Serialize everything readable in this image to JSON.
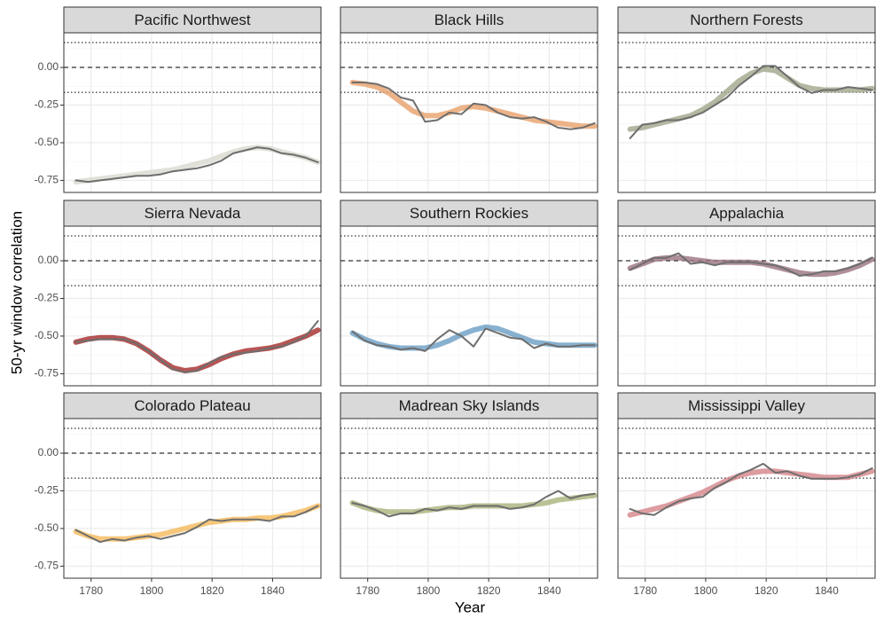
{
  "chart_data": {
    "type": "line",
    "xlabel": "Year",
    "ylabel": "50-yr window correlation",
    "xlim": [
      1771,
      1856
    ],
    "ylim": [
      -0.83,
      0.23
    ],
    "xticks": [
      1780,
      1800,
      1820,
      1840
    ],
    "yticks": [
      {
        "value": 0,
        "label": "0.00"
      },
      {
        "value": -0.25,
        "label": "-0.25"
      },
      {
        "value": -0.5,
        "label": "-0.50"
      },
      {
        "value": -0.75,
        "label": "-0.75"
      }
    ],
    "xminor": [
      1790,
      1810,
      1830,
      1850
    ],
    "yminor": [
      0.125,
      -0.125,
      -0.375,
      -0.625
    ],
    "grid": true,
    "hlines": [
      {
        "value": 0.165,
        "style": "dotted"
      },
      {
        "value": 0,
        "style": "dashed"
      },
      {
        "value": -0.165,
        "style": "dotted"
      }
    ],
    "x": [
      1775,
      1779,
      1783,
      1787,
      1791,
      1795,
      1799,
      1803,
      1807,
      1811,
      1815,
      1819,
      1823,
      1827,
      1831,
      1835,
      1839,
      1843,
      1847,
      1851,
      1855
    ],
    "panels": [
      {
        "title": "Pacific Northwest",
        "series": [
          {
            "color": "#d9d9d0",
            "values": [
              -0.76,
              -0.75,
              -0.74,
              -0.73,
              -0.72,
              -0.71,
              -0.7,
              -0.69,
              -0.68,
              -0.66,
              -0.64,
              -0.62,
              -0.59,
              -0.56,
              -0.54,
              -0.53,
              -0.54,
              -0.56,
              -0.58,
              -0.6,
              -0.63
            ]
          },
          {
            "color": "#6e6e6e",
            "values": [
              -0.75,
              -0.76,
              -0.75,
              -0.74,
              -0.73,
              -0.72,
              -0.72,
              -0.71,
              -0.69,
              -0.68,
              -0.67,
              -0.65,
              -0.62,
              -0.57,
              -0.55,
              -0.53,
              -0.54,
              -0.57,
              -0.58,
              -0.6,
              -0.63
            ]
          }
        ]
      },
      {
        "title": "Black Hills",
        "series": [
          {
            "color": "#e8a06a",
            "values": [
              -0.1,
              -0.11,
              -0.13,
              -0.17,
              -0.23,
              -0.29,
              -0.32,
              -0.32,
              -0.3,
              -0.27,
              -0.26,
              -0.27,
              -0.29,
              -0.31,
              -0.33,
              -0.35,
              -0.36,
              -0.37,
              -0.38,
              -0.39,
              -0.39
            ]
          },
          {
            "color": "#6e6e6e",
            "values": [
              -0.1,
              -0.1,
              -0.11,
              -0.14,
              -0.2,
              -0.22,
              -0.36,
              -0.35,
              -0.3,
              -0.31,
              -0.24,
              -0.25,
              -0.3,
              -0.33,
              -0.34,
              -0.33,
              -0.36,
              -0.4,
              -0.41,
              -0.4,
              -0.37
            ]
          }
        ]
      },
      {
        "title": "Northern Forests",
        "series": [
          {
            "color": "#9fa68a",
            "values": [
              -0.41,
              -0.4,
              -0.38,
              -0.36,
              -0.34,
              -0.32,
              -0.28,
              -0.23,
              -0.16,
              -0.09,
              -0.04,
              -0.01,
              -0.02,
              -0.07,
              -0.12,
              -0.14,
              -0.15,
              -0.15,
              -0.15,
              -0.15,
              -0.14
            ]
          },
          {
            "color": "#6e6e6e",
            "values": [
              -0.47,
              -0.38,
              -0.37,
              -0.35,
              -0.35,
              -0.33,
              -0.3,
              -0.25,
              -0.2,
              -0.12,
              -0.06,
              0.01,
              0.01,
              -0.06,
              -0.13,
              -0.17,
              -0.15,
              -0.15,
              -0.13,
              -0.14,
              -0.15
            ]
          }
        ]
      },
      {
        "title": "Sierra Nevada",
        "series": [
          {
            "color": "#a52a2a",
            "values": [
              -0.54,
              -0.52,
              -0.51,
              -0.51,
              -0.52,
              -0.55,
              -0.6,
              -0.66,
              -0.71,
              -0.73,
              -0.72,
              -0.69,
              -0.65,
              -0.62,
              -0.6,
              -0.59,
              -0.58,
              -0.56,
              -0.53,
              -0.5,
              -0.46
            ]
          },
          {
            "color": "#6e6e6e",
            "values": [
              -0.54,
              -0.53,
              -0.52,
              -0.52,
              -0.52,
              -0.55,
              -0.6,
              -0.66,
              -0.72,
              -0.74,
              -0.73,
              -0.68,
              -0.64,
              -0.62,
              -0.61,
              -0.6,
              -0.58,
              -0.57,
              -0.54,
              -0.5,
              -0.4
            ]
          }
        ]
      },
      {
        "title": "Southern Rockies",
        "series": [
          {
            "color": "#6a9ec4",
            "values": [
              -0.48,
              -0.52,
              -0.55,
              -0.57,
              -0.58,
              -0.58,
              -0.58,
              -0.56,
              -0.53,
              -0.49,
              -0.46,
              -0.44,
              -0.45,
              -0.48,
              -0.51,
              -0.54,
              -0.55,
              -0.56,
              -0.56,
              -0.56,
              -0.56
            ]
          },
          {
            "color": "#6e6e6e",
            "values": [
              -0.47,
              -0.53,
              -0.56,
              -0.57,
              -0.59,
              -0.58,
              -0.6,
              -0.52,
              -0.46,
              -0.5,
              -0.57,
              -0.45,
              -0.48,
              -0.51,
              -0.52,
              -0.58,
              -0.55,
              -0.57,
              -0.57,
              -0.56,
              -0.56
            ]
          }
        ]
      },
      {
        "title": "Appalachia",
        "series": [
          {
            "color": "#9b7382",
            "values": [
              -0.05,
              -0.02,
              0.01,
              0.02,
              0.02,
              0.01,
              0.0,
              -0.01,
              -0.01,
              -0.01,
              -0.01,
              -0.02,
              -0.04,
              -0.06,
              -0.08,
              -0.09,
              -0.09,
              -0.08,
              -0.06,
              -0.03,
              0.01
            ]
          },
          {
            "color": "#6e6e6e",
            "values": [
              -0.06,
              -0.02,
              0.02,
              0.02,
              0.05,
              -0.02,
              -0.01,
              -0.03,
              -0.01,
              -0.01,
              -0.01,
              -0.02,
              -0.03,
              -0.06,
              -0.1,
              -0.09,
              -0.07,
              -0.07,
              -0.05,
              -0.02,
              0.02
            ]
          }
        ]
      },
      {
        "title": "Colorado Plateau",
        "series": [
          {
            "color": "#f5b95a",
            "values": [
              -0.52,
              -0.55,
              -0.57,
              -0.57,
              -0.57,
              -0.56,
              -0.55,
              -0.54,
              -0.52,
              -0.5,
              -0.48,
              -0.46,
              -0.45,
              -0.44,
              -0.44,
              -0.43,
              -0.43,
              -0.42,
              -0.4,
              -0.38,
              -0.35
            ]
          },
          {
            "color": "#6e6e6e",
            "values": [
              -0.51,
              -0.55,
              -0.59,
              -0.57,
              -0.58,
              -0.56,
              -0.55,
              -0.57,
              -0.55,
              -0.53,
              -0.49,
              -0.44,
              -0.45,
              -0.44,
              -0.44,
              -0.44,
              -0.45,
              -0.42,
              -0.42,
              -0.39,
              -0.35
            ]
          }
        ]
      },
      {
        "title": "Madrean Sky Islands",
        "series": [
          {
            "color": "#a7b37a",
            "values": [
              -0.33,
              -0.36,
              -0.38,
              -0.39,
              -0.39,
              -0.39,
              -0.38,
              -0.37,
              -0.36,
              -0.36,
              -0.35,
              -0.35,
              -0.35,
              -0.35,
              -0.35,
              -0.34,
              -0.33,
              -0.31,
              -0.3,
              -0.29,
              -0.28
            ]
          },
          {
            "color": "#6e6e6e",
            "values": [
              -0.33,
              -0.35,
              -0.38,
              -0.42,
              -0.4,
              -0.4,
              -0.37,
              -0.38,
              -0.36,
              -0.37,
              -0.35,
              -0.35,
              -0.35,
              -0.37,
              -0.36,
              -0.34,
              -0.29,
              -0.25,
              -0.3,
              -0.28,
              -0.27
            ]
          }
        ]
      },
      {
        "title": "Mississippi Valley",
        "series": [
          {
            "color": "#d4858a",
            "values": [
              -0.41,
              -0.39,
              -0.37,
              -0.35,
              -0.32,
              -0.29,
              -0.26,
              -0.22,
              -0.18,
              -0.15,
              -0.13,
              -0.12,
              -0.12,
              -0.13,
              -0.14,
              -0.15,
              -0.16,
              -0.16,
              -0.16,
              -0.14,
              -0.12
            ]
          },
          {
            "color": "#6e6e6e",
            "values": [
              -0.37,
              -0.4,
              -0.41,
              -0.36,
              -0.32,
              -0.3,
              -0.29,
              -0.23,
              -0.19,
              -0.14,
              -0.11,
              -0.07,
              -0.13,
              -0.12,
              -0.15,
              -0.17,
              -0.17,
              -0.17,
              -0.16,
              -0.14,
              -0.1
            ]
          }
        ]
      }
    ]
  }
}
